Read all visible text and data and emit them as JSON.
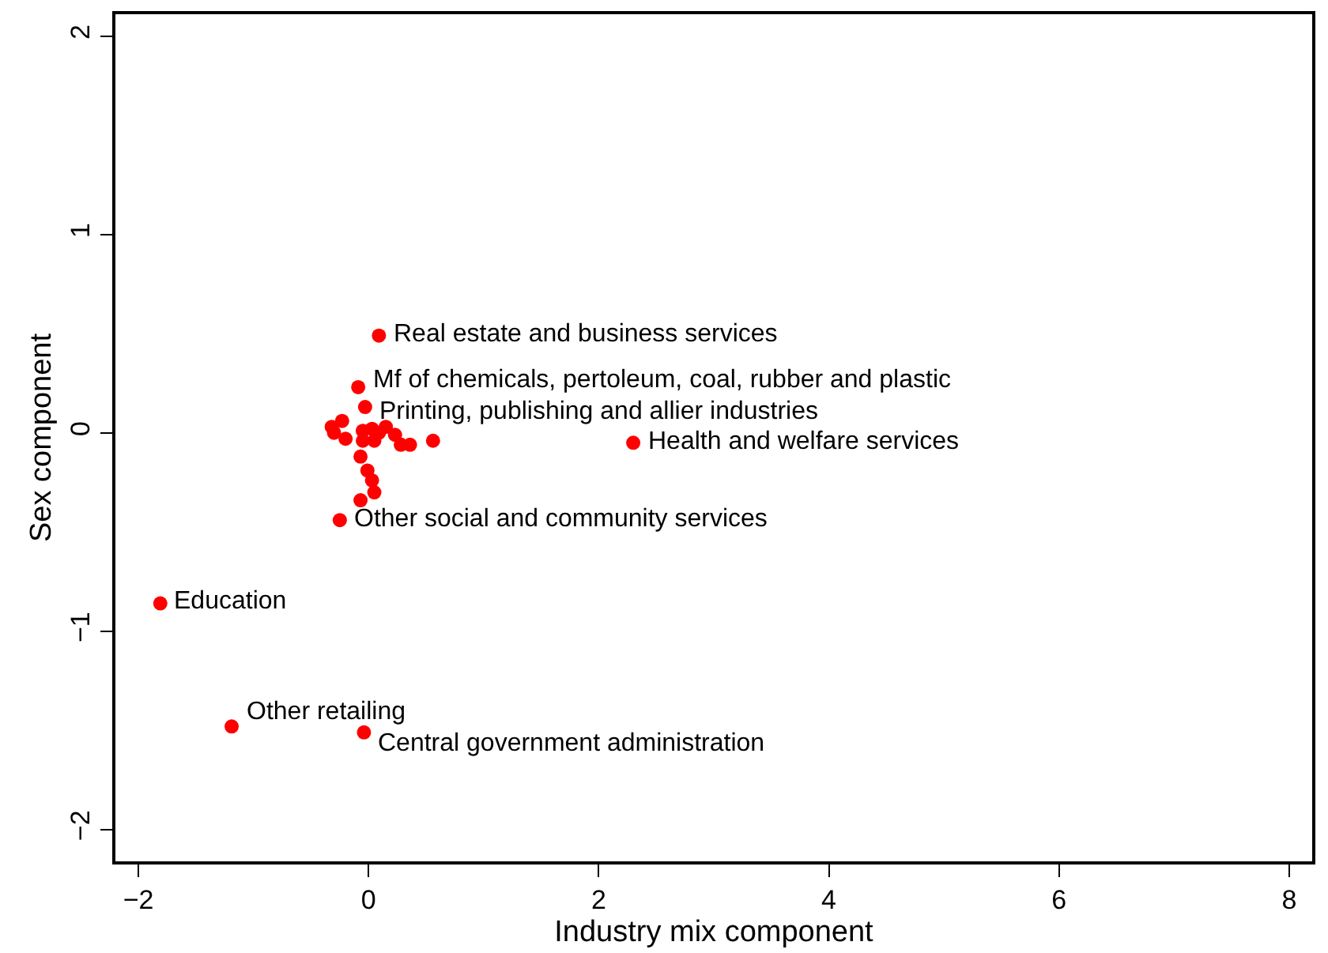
{
  "chart_data": {
    "type": "scatter",
    "xlabel": "Industry mix component",
    "ylabel": "Sex component",
    "x": [
      -0.09,
      -0.03,
      -0.32,
      -0.23,
      -0.3,
      -0.2,
      -0.05,
      0.03,
      0.09,
      0.15,
      0.23,
      0.28,
      0.36,
      0.56,
      -0.05,
      0.05,
      -0.07,
      -0.01,
      0.03,
      0.05,
      -0.07,
      -0.25,
      0.09,
      2.3,
      -1.81,
      -1.19,
      -0.04
    ],
    "series": [
      {
        "color": "#ff0000",
        "values": [
          0.23,
          0.13,
          0.03,
          0.06,
          0.0,
          -0.03,
          0.01,
          0.02,
          0.0,
          0.03,
          -0.01,
          -0.06,
          -0.06,
          -0.04,
          -0.04,
          -0.04,
          -0.12,
          -0.19,
          -0.24,
          -0.3,
          -0.34,
          -0.44,
          0.49,
          -0.05,
          -0.86,
          -1.48,
          -1.51
        ]
      }
    ],
    "marker": "circle",
    "xlim": [
      -2.2,
      8.2
    ],
    "xticks": [
      {
        "value": -2,
        "label": "−2"
      },
      0,
      2,
      4,
      6,
      8
    ],
    "ylim": [
      -2.16,
      2.11
    ],
    "yticks": [
      {
        "value": -2,
        "label": "−2"
      },
      {
        "value": -1,
        "label": "−1"
      },
      0,
      1,
      2
    ],
    "annotations": [
      {
        "text": "Mf of chemicals, pertoleum, coal, rubber and plastic",
        "x": -0.09,
        "y": 0.23
      },
      {
        "text": "Printing, publishing and allier industries",
        "x": -0.03,
        "y": 0.13
      },
      {
        "text": "Other social and community services",
        "x": -0.25,
        "y": -0.44
      },
      {
        "text": "Real estate and business services",
        "x": 0.09,
        "y": 0.49
      },
      {
        "text": "Health and welfare services",
        "x": 2.3,
        "y": -0.05
      },
      {
        "text": "Education",
        "x": -1.81,
        "y": -0.86
      },
      {
        "text": "Other retailing",
        "x": -1.19,
        "y": -1.48
      },
      {
        "text": "Central government administration",
        "x": -0.04,
        "y": -1.51
      }
    ]
  }
}
